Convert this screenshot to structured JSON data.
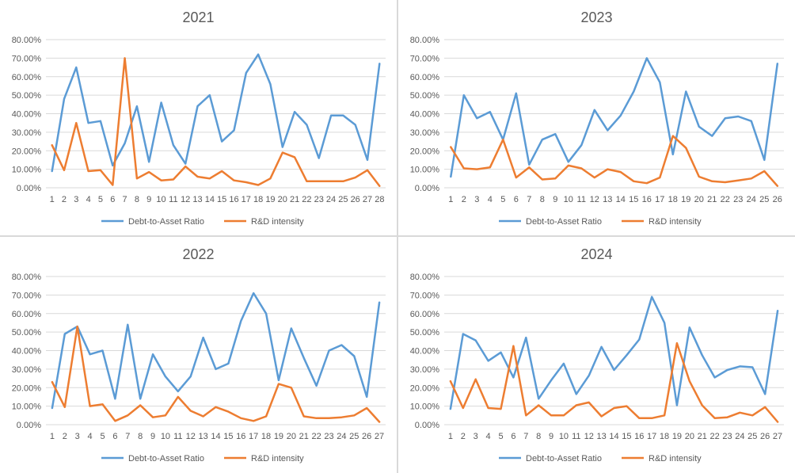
{
  "colors": {
    "debt": "#5b9bd5",
    "rd": "#ed7d31",
    "grid": "#d9d9d9",
    "text": "#595959"
  },
  "chart_data": [
    {
      "type": "line",
      "title": "2021",
      "x": [
        1,
        2,
        3,
        4,
        5,
        6,
        7,
        8,
        9,
        10,
        11,
        12,
        13,
        14,
        15,
        16,
        17,
        18,
        19,
        20,
        21,
        22,
        23,
        24,
        25,
        26,
        27,
        28
      ],
      "ylim": [
        0,
        80
      ],
      "yticks": [
        "0.00%",
        "10.00%",
        "20.00%",
        "30.00%",
        "40.00%",
        "50.00%",
        "60.00%",
        "70.00%",
        "80.00%"
      ],
      "legend": "bottom",
      "series": [
        {
          "name": "Debt-to-Asset Ratio",
          "values": [
            9,
            48,
            65,
            35,
            36,
            12,
            24,
            44,
            14,
            46,
            23,
            13,
            44,
            50,
            25,
            31,
            62,
            72,
            56,
            22,
            41,
            34,
            16,
            39,
            39,
            34,
            15,
            67
          ]
        },
        {
          "name": "R&D intensity",
          "values": [
            23,
            9.5,
            35,
            9,
            9.5,
            1.5,
            70,
            5,
            8.5,
            4,
            4.5,
            11.5,
            6,
            5,
            9,
            4,
            3,
            1.5,
            5,
            19,
            16.5,
            3.5,
            3.5,
            3.5,
            3.5,
            5.5,
            9.5,
            1
          ]
        }
      ]
    },
    {
      "type": "line",
      "title": "2023",
      "x": [
        1,
        2,
        3,
        4,
        5,
        6,
        7,
        8,
        9,
        10,
        11,
        12,
        13,
        14,
        15,
        16,
        17,
        18,
        19,
        20,
        21,
        22,
        23,
        24,
        25,
        26
      ],
      "ylim": [
        0,
        80
      ],
      "yticks": [
        "0.00%",
        "10.00%",
        "20.00%",
        "30.00%",
        "40.00%",
        "50.00%",
        "60.00%",
        "70.00%",
        "80.00%"
      ],
      "legend": "bottom",
      "series": [
        {
          "name": "Debt-to-Asset Ratio",
          "values": [
            6,
            50,
            37.5,
            41,
            26,
            51,
            12.5,
            26,
            29,
            14,
            23,
            42,
            31,
            39,
            52,
            70,
            57,
            18,
            52,
            33,
            28,
            37.5,
            38.5,
            36,
            15,
            67
          ]
        },
        {
          "name": "R&D intensity",
          "values": [
            22,
            10.5,
            10,
            11,
            26,
            5.5,
            11,
            4.5,
            5,
            12,
            10.5,
            5.5,
            10,
            8.5,
            3.5,
            2.5,
            5.5,
            28,
            21.5,
            6,
            3.5,
            3,
            4,
            5,
            9,
            1
          ]
        }
      ]
    },
    {
      "type": "line",
      "title": "2022",
      "x": [
        1,
        2,
        3,
        4,
        5,
        6,
        7,
        8,
        9,
        10,
        11,
        12,
        13,
        14,
        15,
        16,
        17,
        18,
        19,
        20,
        21,
        22,
        23,
        24,
        25,
        26,
        27
      ],
      "ylim": [
        0,
        80
      ],
      "yticks": [
        "0.00%",
        "10.00%",
        "20.00%",
        "30.00%",
        "40.00%",
        "50.00%",
        "60.00%",
        "70.00%",
        "80.00%"
      ],
      "legend": "bottom",
      "series": [
        {
          "name": "Debt-to-Asset Ratio",
          "values": [
            9,
            49,
            53,
            38,
            40,
            14,
            54,
            14,
            38,
            26,
            18,
            26,
            47,
            30,
            33,
            56,
            71,
            60,
            24,
            52,
            36,
            21,
            40,
            43,
            37,
            15,
            66
          ]
        },
        {
          "name": "R&D intensity",
          "values": [
            23,
            9.5,
            53,
            10,
            11,
            2,
            5,
            10.5,
            4,
            5,
            15,
            7.5,
            4.5,
            9.5,
            7,
            3.5,
            2,
            4.5,
            22,
            20,
            4.5,
            3.5,
            3.5,
            4,
            5,
            9,
            1.5
          ]
        }
      ]
    },
    {
      "type": "line",
      "title": "2024",
      "x": [
        1,
        2,
        3,
        4,
        5,
        6,
        7,
        8,
        9,
        10,
        11,
        12,
        13,
        14,
        15,
        16,
        17,
        18,
        19,
        20,
        21,
        22,
        23,
        24,
        25,
        26,
        27
      ],
      "ylim": [
        0,
        80
      ],
      "yticks": [
        "0.00%",
        "10.00%",
        "20.00%",
        "30.00%",
        "40.00%",
        "50.00%",
        "60.00%",
        "70.00%",
        "80.00%"
      ],
      "legend": "bottom",
      "series": [
        {
          "name": "Debt-to-Asset Ratio",
          "values": [
            8.5,
            49,
            45.5,
            34.5,
            39,
            25.5,
            47,
            14,
            24,
            33,
            16.5,
            26.5,
            42,
            29.5,
            37.5,
            46,
            69,
            55,
            10.5,
            52.5,
            37.5,
            25.5,
            29.5,
            31.5,
            31,
            16.5,
            61.5
          ]
        },
        {
          "name": "R&D intensity",
          "values": [
            23.5,
            9,
            24.5,
            9,
            8.5,
            42.5,
            5,
            10.5,
            5,
            5,
            10.5,
            12,
            4.5,
            9,
            10,
            3.5,
            3.5,
            5,
            44,
            23.5,
            10.5,
            3.5,
            4,
            6.5,
            5,
            9.5,
            1.5
          ]
        }
      ]
    }
  ]
}
